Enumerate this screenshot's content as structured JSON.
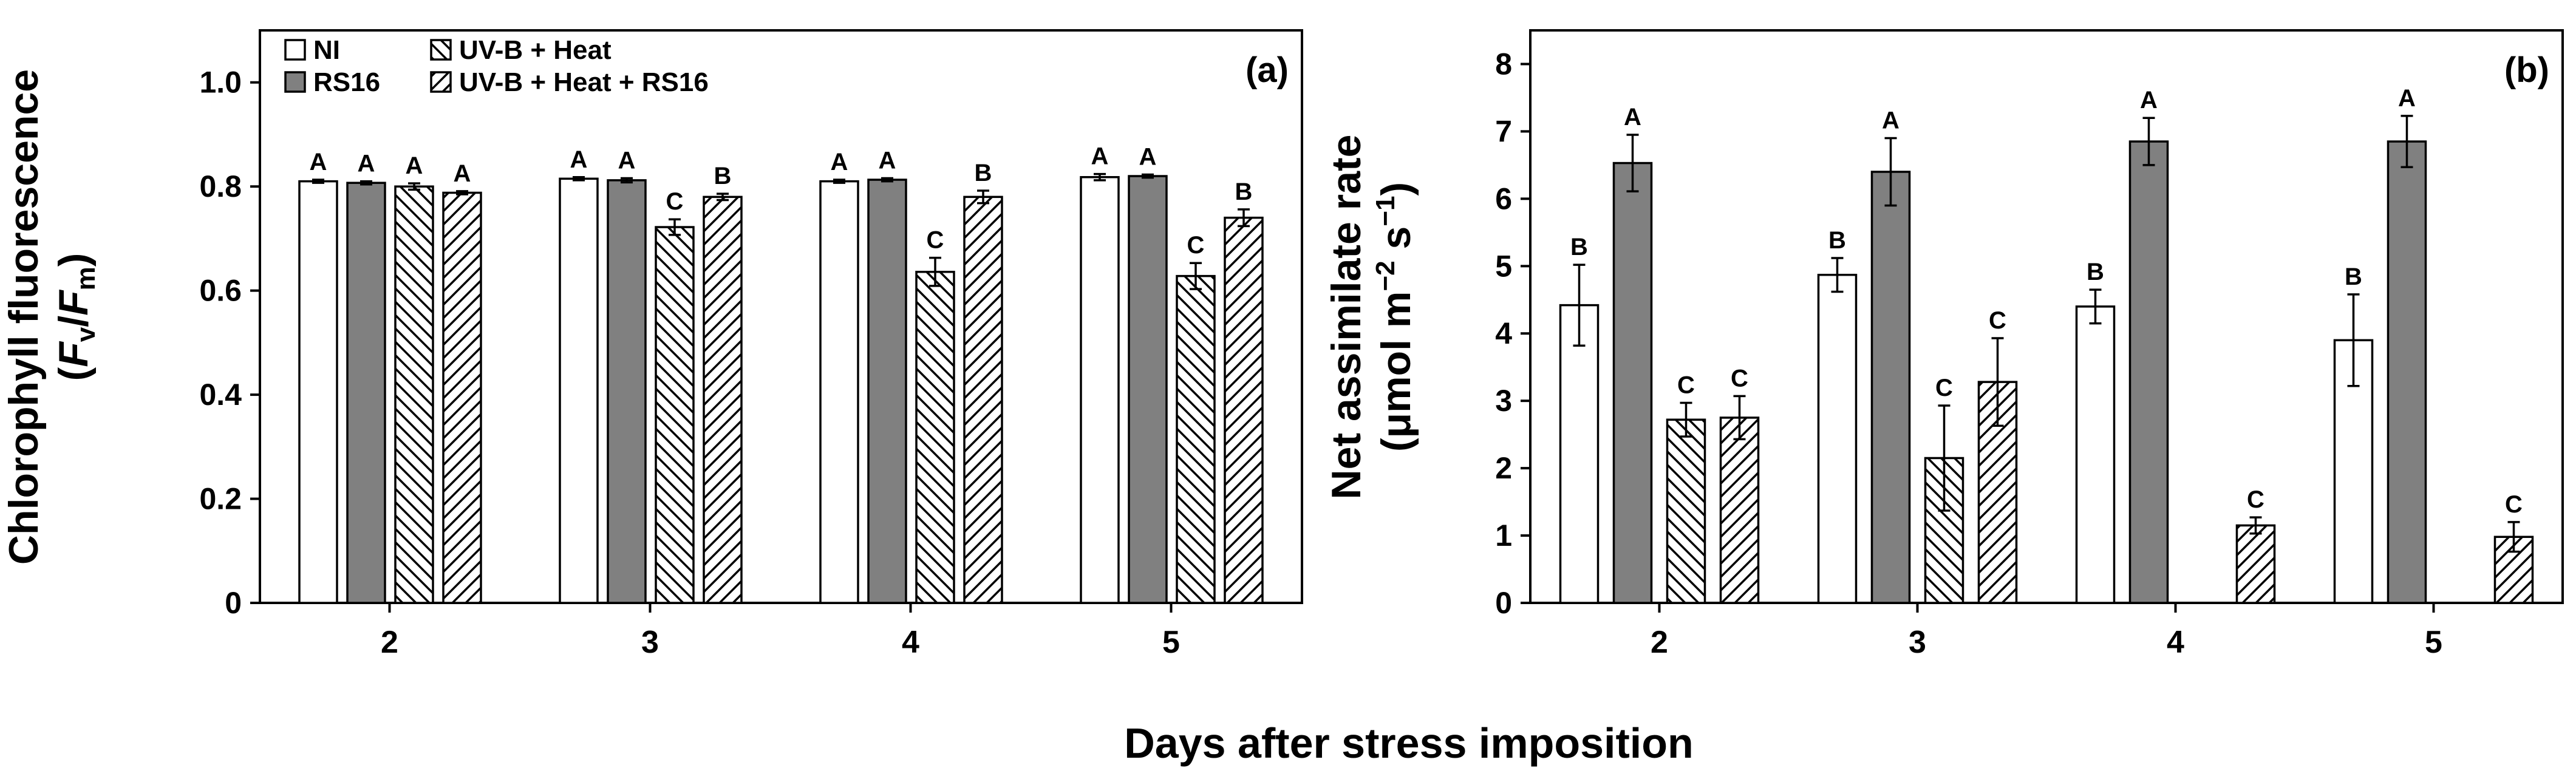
{
  "figure": {
    "shared_xlabel": "Days after stress imposition"
  },
  "legend": {
    "items": [
      {
        "label": "NI",
        "style": "open"
      },
      {
        "label": "RS16",
        "style": "grey"
      },
      {
        "label": "UV-B + Heat",
        "style": "hatch-back"
      },
      {
        "label": "UV-B + Heat + RS16",
        "style": "hatch-fwd"
      }
    ]
  },
  "colors": {
    "grey_fill": "#808080",
    "open_fill": "#ffffff",
    "line": "#000000"
  },
  "chart_data": [
    {
      "type": "bar",
      "panel_label": "(a)",
      "title": "",
      "ylabel_line1": "Chlorophyll fluorescence",
      "ylabel_line2_parts": [
        "(",
        "F",
        "v",
        "/",
        "F",
        "m",
        ")"
      ],
      "ylabel": "Chlorophyll fluorescence (Fv/Fm)",
      "xlabel": "Days after stress imposition",
      "ylim": [
        0,
        1.1
      ],
      "yticks": [
        0,
        0.2,
        0.4,
        0.6,
        0.8,
        1.0
      ],
      "ytick_labels": [
        "0",
        "0.2",
        "0.4",
        "0.6",
        "0.8",
        "1.0"
      ],
      "categories": [
        "2",
        "3",
        "4",
        "5"
      ],
      "series": [
        {
          "name": "NI",
          "values": [
            0.81,
            0.815,
            0.81,
            0.818
          ],
          "errors": [
            0.003,
            0.003,
            0.003,
            0.006
          ],
          "letters": [
            "A",
            "A",
            "A",
            "A"
          ]
        },
        {
          "name": "RS16",
          "values": [
            0.807,
            0.812,
            0.813,
            0.82
          ],
          "errors": [
            0.003,
            0.004,
            0.003,
            0.003
          ],
          "letters": [
            "A",
            "A",
            "A",
            "A"
          ]
        },
        {
          "name": "UV-B + Heat",
          "values": [
            0.8,
            0.722,
            0.636,
            0.628
          ],
          "errors": [
            0.006,
            0.015,
            0.027,
            0.025
          ],
          "letters": [
            "A",
            "C",
            "C",
            "C"
          ]
        },
        {
          "name": "UV-B + Heat + RS16",
          "values": [
            0.788,
            0.78,
            0.78,
            0.74
          ],
          "errors": [
            0.003,
            0.006,
            0.012,
            0.016
          ],
          "letters": [
            "A",
            "B",
            "B",
            "B"
          ]
        }
      ]
    },
    {
      "type": "bar",
      "panel_label": "(b)",
      "title": "",
      "ylabel_line1": "Net assimilate rate",
      "ylabel_line2_parts": [
        "(μmol m",
        "−2",
        " s",
        "−1",
        ")"
      ],
      "ylabel": "Net assimilate rate (μmol m−2 s−1)",
      "xlabel": "Days after stress imposition",
      "ylim": [
        0,
        8.5
      ],
      "yticks": [
        0,
        1,
        2,
        3,
        4,
        5,
        6,
        7,
        8
      ],
      "ytick_labels": [
        "0",
        "1",
        "2",
        "3",
        "4",
        "5",
        "6",
        "7",
        "8"
      ],
      "categories": [
        "2",
        "3",
        "4",
        "5"
      ],
      "series": [
        {
          "name": "NI",
          "values": [
            4.42,
            4.87,
            4.4,
            3.9
          ],
          "errors": [
            0.6,
            0.25,
            0.25,
            0.68
          ],
          "letters": [
            "B",
            "B",
            "B",
            "B"
          ]
        },
        {
          "name": "RS16",
          "values": [
            6.53,
            6.4,
            6.85,
            6.85
          ],
          "errors": [
            0.42,
            0.5,
            0.35,
            0.38
          ],
          "letters": [
            "A",
            "A",
            "A",
            "A"
          ]
        },
        {
          "name": "UV-B + Heat",
          "values": [
            2.72,
            2.15,
            null,
            null
          ],
          "errors": [
            0.25,
            0.78,
            null,
            null
          ],
          "letters": [
            "C",
            "C",
            "",
            ""
          ]
        },
        {
          "name": "UV-B + Heat + RS16",
          "values": [
            2.75,
            3.28,
            1.15,
            0.98
          ],
          "errors": [
            0.32,
            0.65,
            0.12,
            0.22
          ],
          "letters": [
            "C",
            "C",
            "C",
            "C"
          ]
        }
      ]
    }
  ]
}
